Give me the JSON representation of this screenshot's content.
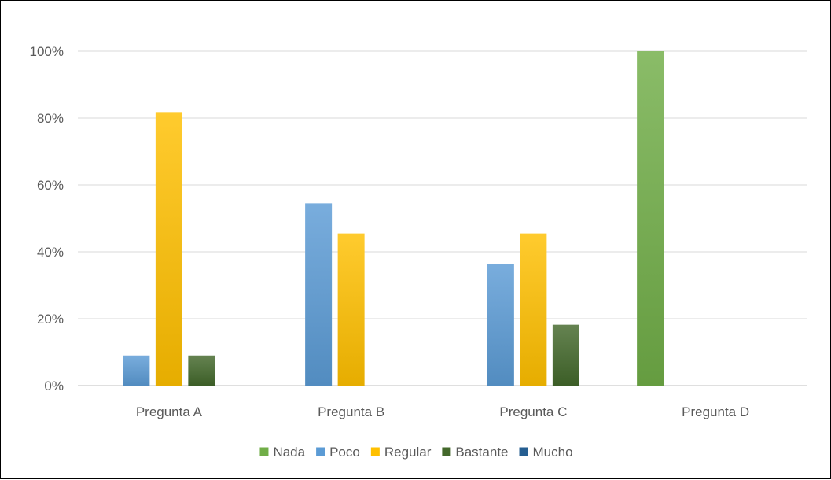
{
  "chart_data": {
    "type": "bar",
    "title": "",
    "xlabel": "",
    "ylabel": "",
    "categories": [
      "Pregunta A",
      "Pregunta B",
      "Pregunta C",
      "Pregunta D"
    ],
    "series": [
      {
        "name": "Nada",
        "color": "#70AD47",
        "values": [
          0,
          0,
          0,
          100
        ]
      },
      {
        "name": "Poco",
        "color": "#5B9BD5",
        "values": [
          9,
          54.5,
          36.4,
          0
        ]
      },
      {
        "name": "Regular",
        "color": "#FFC000",
        "values": [
          81.8,
          45.5,
          45.5,
          0
        ]
      },
      {
        "name": "Bastante",
        "color": "#43682B",
        "values": [
          9,
          0,
          18.2,
          0
        ]
      },
      {
        "name": "Mucho",
        "color": "#255E91",
        "values": [
          0,
          0,
          0,
          0
        ]
      }
    ],
    "ylim": [
      0,
      100
    ],
    "yticks": [
      0,
      20,
      40,
      60,
      80,
      100
    ],
    "ytick_labels": [
      "0%",
      "20%",
      "40%",
      "60%",
      "80%",
      "100%"
    ],
    "grid": true,
    "legend_position": "bottom"
  }
}
